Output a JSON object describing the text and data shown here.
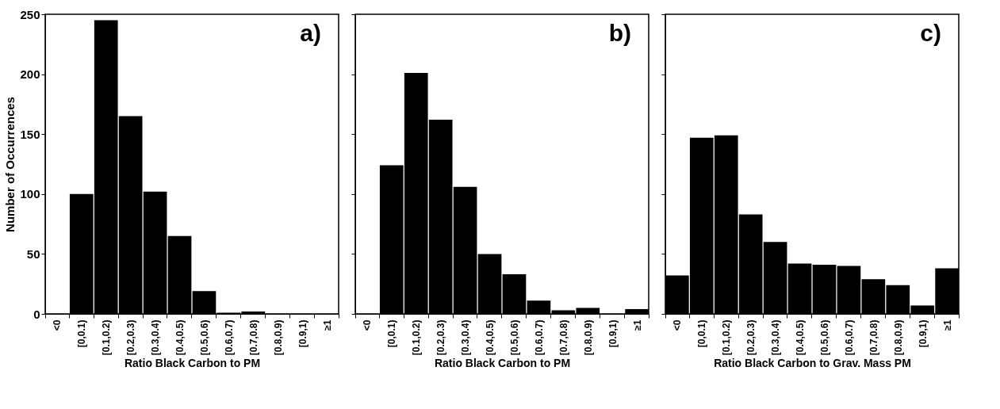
{
  "chart_data": [
    {
      "type": "bar",
      "categories": [
        "<0",
        "[0,0.1)",
        "[0.1,0.2)",
        "[0.2,0.3)",
        "[0.3,0.4)",
        "[0.4,0.5)",
        "[0.5,0.6)",
        "[0.6,0.7)",
        "[0.7,0.8)",
        "[0.8,0.9)",
        "[0.9,1)",
        "≥1"
      ],
      "values": [
        0,
        100,
        245,
        165,
        102,
        65,
        19,
        1,
        2,
        0,
        0,
        0
      ],
      "color": "#000000",
      "xlabel": "Ratio Black Carbon to PM",
      "ylabel": "Number of Occurrences",
      "ylim": [
        0,
        250
      ],
      "yticks": [
        0,
        50,
        100,
        150,
        200,
        250
      ],
      "annotations": [
        "a)"
      ],
      "grid": false
    },
    {
      "type": "bar",
      "categories": [
        "<0",
        "[0,0.1)",
        "[0.1,0.2)",
        "[0.2,0.3)",
        "[0.3,0.4)",
        "[0.4,0.5)",
        "[0.5,0.6)",
        "[0.6,0.7)",
        "[0.7,0.8)",
        "[0.8,0.9)",
        "[0.9,1)",
        "≥1"
      ],
      "values": [
        0,
        124,
        201,
        162,
        106,
        50,
        33,
        11,
        3,
        5,
        0,
        4
      ],
      "color": "#000000",
      "xlabel": "Ratio Black Carbon to PM",
      "ylim": [
        0,
        250
      ],
      "yticks": [
        0,
        50,
        100,
        150,
        200,
        250
      ],
      "tick_labels": "x",
      "annotations": [
        "b)"
      ],
      "grid": false
    },
    {
      "type": "bar",
      "categories": [
        "<0",
        "[0,0.1)",
        "[0.1,0.2)",
        "[0.2,0.3)",
        "[0.3,0.4)",
        "[0.4,0.5)",
        "[0.5,0.6)",
        "[0.6,0.7)",
        "[0.7,0.8)",
        "[0.8,0.9)",
        "[0.9,1)",
        "≥1"
      ],
      "values": [
        32,
        147,
        149,
        83,
        60,
        42,
        41,
        40,
        29,
        24,
        7,
        38
      ],
      "color": "#000000",
      "xlabel": "Ratio Black Carbon to Grav. Mass PM",
      "ylim": [
        0,
        250
      ],
      "yticks": [
        0,
        50,
        100,
        150,
        200,
        250
      ],
      "tick_labels": "x",
      "annotations": [
        "c)"
      ],
      "grid": false
    }
  ]
}
